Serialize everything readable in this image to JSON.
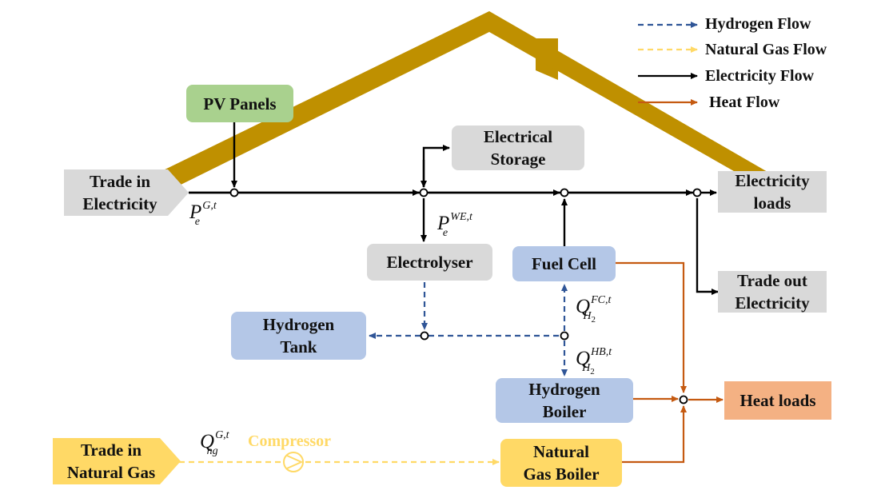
{
  "colors": {
    "roof": "#bf9000",
    "pv": "#a9d18e",
    "grey": "#d9d9d9",
    "blue": "#b4c7e7",
    "heat": "#f4b183",
    "gas": "#ffd966",
    "hydrogen_flow": "#2f5597",
    "gas_flow": "#ffd966",
    "electricity_flow": "#000000",
    "heat_flow": "#c55a11"
  },
  "legend": {
    "hydrogen": "Hydrogen Flow",
    "natural_gas": "Natural Gas Flow",
    "electricity": "Electricity Flow",
    "heat": "Heat Flow"
  },
  "nodes": {
    "pv_panels": "PV Panels",
    "trade_in_electricity": "Trade in\nElectricity",
    "electrical_storage": "Electrical\nStorage",
    "electricity_loads": "Electricity\nloads",
    "electrolyser": "Electrolyser",
    "fuel_cell": "Fuel Cell",
    "hydrogen_tank": "Hydrogen\nTank",
    "trade_out_electricity": "Trade out\nElectricity",
    "hydrogen_boiler": "Hydrogen\nBoiler",
    "heat_loads": "Heat loads",
    "trade_in_natural_gas": "Trade in\nNatural Gas",
    "natural_gas_boiler": "Natural\nGas Boiler",
    "compressor": "Compressor"
  },
  "labels": {
    "pv_grid": {
      "base": "P",
      "sup": "G,t",
      "sub": "e"
    },
    "electrolyser_power": {
      "base": "P",
      "sup": "WE,t",
      "sub": "e"
    },
    "fc_hydrogen": {
      "base": "Q",
      "sup": "FC,t",
      "sub": "H",
      "sub2": "2"
    },
    "hb_hydrogen": {
      "base": "Q",
      "sup": "HB,t",
      "sub": "H",
      "sub2": "2"
    },
    "gas_import": {
      "base": "Q",
      "sup": "G,t",
      "sub": "ng"
    }
  }
}
